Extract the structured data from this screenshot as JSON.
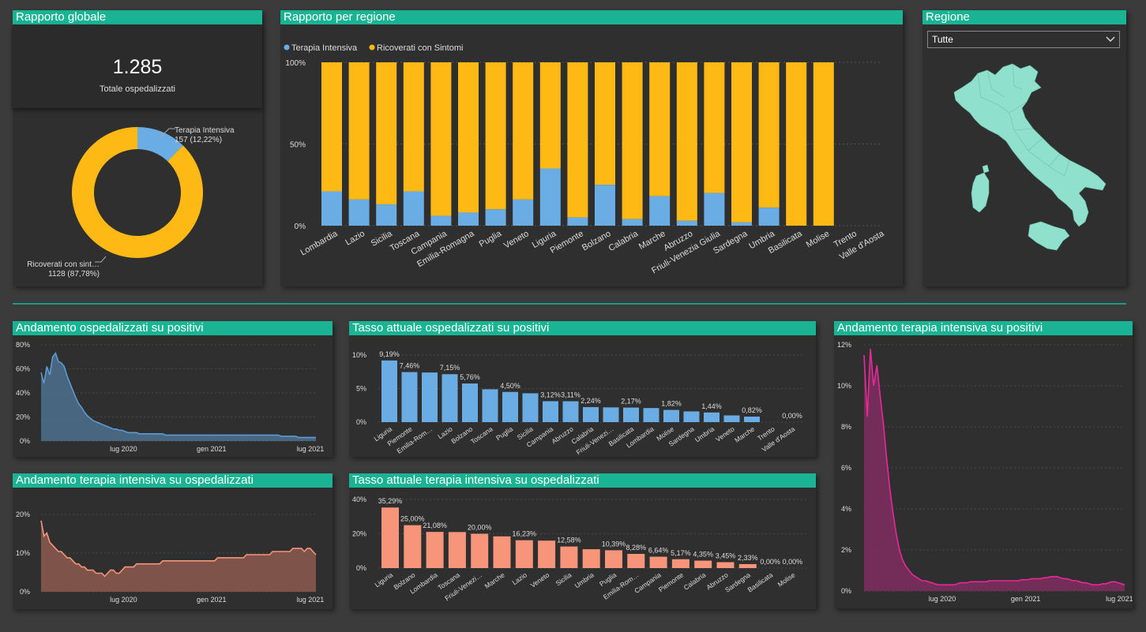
{
  "colors": {
    "title_bar": "#1ab394",
    "intensive": "#6aade4",
    "symptoms": "#ffb915",
    "hosp_line": "#5b9bd5",
    "hosp_fill": "#4d6d8a",
    "ti_hosp": "#f7957a",
    "ti_hosp_fill": "#87584c",
    "ti_pos": "#e8289a",
    "ti_pos_fill": "#7c2d5e",
    "map": "#8fe0cc"
  },
  "global": {
    "title": "Rapporto globale",
    "kpi_value": "1.285",
    "kpi_label": "Totale ospedalizzati",
    "donut": {
      "slices": [
        {
          "name": "Terapia Intensiva",
          "value": 157,
          "label": "157 (12,22%)"
        },
        {
          "name": "Ricoverati con sint…",
          "value": 1128,
          "label": "1128 (87,78%)"
        }
      ]
    }
  },
  "slicer": {
    "title": "Regione",
    "value": "Tutte",
    "icon": "chevron-down-icon"
  },
  "map": {
    "icon": "italy-map-icon"
  },
  "charts": {
    "region_ratio": {
      "title": "Rapporto per regione",
      "type": "bar",
      "stacked": "100%",
      "legend": [
        "Terapia Intensiva",
        "Ricoverati con Sintomi"
      ],
      "y_ticks": [
        "100%",
        "50%",
        "0%"
      ],
      "categories": [
        "Lombardia",
        "Lazio",
        "Sicilia",
        "Toscana",
        "Campania",
        "Emilia-Romagna",
        "Puglia",
        "Veneto",
        "Liguria",
        "Piemonte",
        "Bolzano",
        "Calabria",
        "Marche",
        "Abruzzo",
        "Friuli-Venezia Giulia",
        "Sardegna",
        "Umbria",
        "Basilicata",
        "Molise",
        "Trento",
        "Valle d'Aosta"
      ],
      "intensive_pct": [
        21,
        16,
        13,
        21,
        6,
        8,
        10,
        16,
        35,
        5,
        25,
        4,
        18,
        3,
        20,
        2,
        11,
        0,
        0,
        null,
        null
      ]
    },
    "hosp_on_pos": {
      "title": "Andamento ospedalizzati su positivi",
      "type": "area",
      "y_ticks": [
        "80%",
        "60%",
        "40%",
        "20%",
        "0%"
      ],
      "x_ticks": [
        "lug 2020",
        "gen 2021",
        "lug 2021"
      ],
      "ylim": [
        0,
        80
      ],
      "values": [
        57,
        48,
        62,
        55,
        70,
        73,
        66,
        65,
        62,
        54,
        48,
        42,
        36,
        31,
        28,
        24,
        21,
        19,
        17,
        16,
        15,
        14,
        13,
        12,
        11,
        10,
        10,
        9,
        9,
        8,
        7,
        7,
        7,
        7,
        6,
        6,
        6,
        6,
        6,
        6,
        6,
        6,
        6,
        5,
        5,
        5,
        5,
        5,
        5,
        5,
        5,
        5,
        5,
        5,
        5,
        5,
        5,
        5,
        5,
        5,
        5,
        5,
        5,
        5,
        5,
        5,
        5,
        5,
        5,
        5,
        5,
        5,
        5,
        5,
        5,
        5,
        5,
        5,
        5,
        5,
        5,
        5,
        5,
        4,
        4,
        4,
        4,
        4,
        4,
        3,
        3,
        3,
        3,
        3,
        3,
        3
      ]
    },
    "ti_on_hosp": {
      "title": "Andamento terapia intensiva su ospedalizzati",
      "type": "area",
      "y_ticks": [
        "20%",
        "10%",
        "0%"
      ],
      "x_ticks": [
        "lug 2020",
        "gen 2021",
        "lug 2021"
      ],
      "ylim": [
        0,
        25
      ],
      "values": [
        23,
        18,
        19,
        16,
        15,
        14,
        13,
        13,
        12,
        11,
        11,
        10,
        9,
        9,
        8,
        8,
        7,
        7,
        7,
        6,
        6,
        6,
        5,
        6,
        7,
        7,
        6,
        6,
        7,
        8,
        8,
        8,
        8,
        9,
        9,
        9,
        9,
        9,
        9,
        9,
        9,
        9,
        10,
        10,
        10,
        10,
        10,
        10,
        10,
        10,
        10,
        10,
        10,
        10,
        10,
        10,
        10,
        10,
        10,
        10,
        10,
        11,
        11,
        11,
        11,
        11,
        11,
        11,
        11,
        11,
        11,
        12,
        12,
        12,
        12,
        12,
        12,
        12,
        12,
        12,
        13,
        13,
        13,
        13,
        13,
        13,
        13,
        14,
        14,
        14,
        14,
        13,
        14,
        14,
        13,
        12
      ]
    },
    "rate_hosp_pos": {
      "title": "Tasso attuale ospedalizzati su positivi",
      "type": "bar",
      "y_ticks": [
        "10%",
        "5%",
        "0%"
      ],
      "ylim": [
        0,
        10
      ],
      "categories": [
        "Liguria",
        "Piemonte",
        "Emilia-Rom…",
        "Lazio",
        "Bolzano",
        "Toscana",
        "Puglia",
        "Sicilia",
        "Campania",
        "Abruzzo",
        "Calabria",
        "Friuli-Venezi…",
        "Basilicata",
        "Lombardia",
        "Molise",
        "Sardegna",
        "Umbria",
        "Veneto",
        "Marche",
        "Trento",
        "Valle d'Aosta"
      ],
      "values": [
        9.19,
        7.46,
        7.4,
        7.15,
        5.76,
        4.9,
        4.5,
        4.3,
        3.12,
        3.11,
        2.24,
        2.2,
        2.17,
        2.1,
        1.82,
        1.6,
        1.44,
        1.0,
        0.82,
        0,
        0
      ],
      "data_labels": [
        "9,19%",
        "7,46%",
        "",
        "7,15%",
        "5,76%",
        "",
        "4,50%",
        "",
        "3,12%",
        "3,11%",
        "2,24%",
        "",
        "2,17%",
        "",
        "1,82%",
        "",
        "1,44%",
        "",
        "0,82%",
        "",
        "0,00%"
      ]
    },
    "rate_ti_hosp": {
      "title": "Tasso attuale terapia intensiva su ospedalizzati",
      "type": "bar",
      "y_ticks": [
        "40%",
        "20%",
        "0%"
      ],
      "ylim": [
        0,
        40
      ],
      "categories": [
        "Liguria",
        "Bolzano",
        "Lombardia",
        "Toscana",
        "Friuli-Venezi…",
        "Marche",
        "Lazio",
        "Veneto",
        "Sicilia",
        "Umbria",
        "Puglia",
        "Emilia-Rom…",
        "Campania",
        "Piemonte",
        "Calabria",
        "Abruzzo",
        "Sardegna",
        "Basilicata",
        "Molise"
      ],
      "values": [
        35.29,
        25.0,
        21.08,
        21.0,
        20.0,
        18.5,
        16.23,
        16.0,
        12.58,
        11.0,
        10.39,
        8.28,
        6.64,
        5.17,
        4.35,
        3.45,
        2.33,
        0,
        0
      ],
      "data_labels": [
        "35,29%",
        "25,00%",
        "21,08%",
        "",
        "20,00%",
        "",
        "16,23%",
        "",
        "12,58%",
        "",
        "10,39%",
        "8,28%",
        "6,64%",
        "5,17%",
        "4,35%",
        "3,45%",
        "2,33%",
        "0,00%",
        "0,00%"
      ]
    },
    "ti_on_pos": {
      "title": "Andamento terapia intensiva su positivi",
      "type": "area",
      "y_ticks": [
        "12%",
        "10%",
        "8%",
        "6%",
        "4%",
        "2%",
        "0%"
      ],
      "x_ticks": [
        "lug 2020",
        "gen 2021",
        "lug 2021"
      ],
      "ylim": [
        0,
        12
      ],
      "values": [
        11.5,
        8.5,
        11.8,
        10,
        11,
        9.5,
        8.2,
        6.5,
        5,
        3.8,
        2.8,
        2,
        1.5,
        1.2,
        1,
        0.8,
        0.7,
        0.6,
        0.5,
        0.5,
        0.45,
        0.4,
        0.35,
        0.3,
        0.3,
        0.3,
        0.3,
        0.3,
        0.3,
        0.35,
        0.4,
        0.4,
        0.4,
        0.45,
        0.45,
        0.45,
        0.45,
        0.45,
        0.45,
        0.5,
        0.5,
        0.5,
        0.5,
        0.5,
        0.5,
        0.5,
        0.5,
        0.5,
        0.5,
        0.55,
        0.55,
        0.55,
        0.6,
        0.6,
        0.6,
        0.6,
        0.65,
        0.65,
        0.7,
        0.7,
        0.7,
        0.65,
        0.6,
        0.6,
        0.55,
        0.5,
        0.5,
        0.45,
        0.4,
        0.4,
        0.35,
        0.3,
        0.3,
        0.3,
        0.35,
        0.35,
        0.4,
        0.45,
        0.45,
        0.4,
        0.35,
        0.3
      ]
    }
  }
}
